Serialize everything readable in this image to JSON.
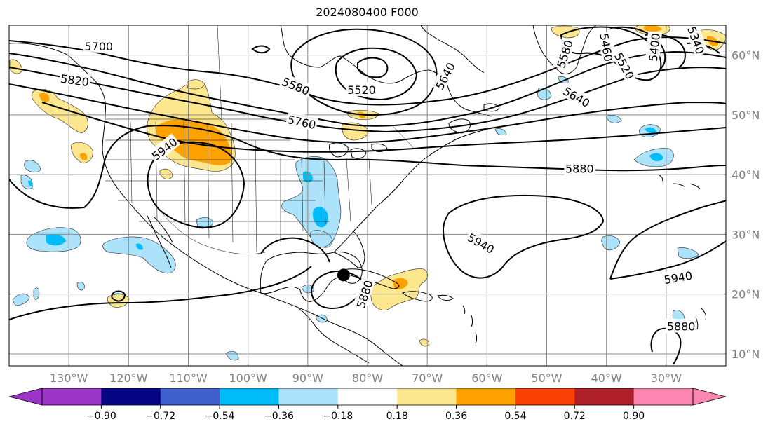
{
  "title": "2024080400 F000",
  "map": {
    "lon_min": -140,
    "lon_max": -20,
    "lat_min": 8,
    "lat_max": 65
  },
  "lon_ticks": [
    {
      "lon": -130,
      "label": "130°W"
    },
    {
      "lon": -120,
      "label": "120°W"
    },
    {
      "lon": -110,
      "label": "110°W"
    },
    {
      "lon": -100,
      "label": "100°W"
    },
    {
      "lon": -90,
      "label": "90°W"
    },
    {
      "lon": -80,
      "label": "80°W"
    },
    {
      "lon": -70,
      "label": "70°W"
    },
    {
      "lon": -60,
      "label": "60°W"
    },
    {
      "lon": -50,
      "label": "50°W"
    },
    {
      "lon": -40,
      "label": "40°W"
    },
    {
      "lon": -30,
      "label": "30°W"
    }
  ],
  "lat_ticks": [
    {
      "lat": 10,
      "label": "10°N"
    },
    {
      "lat": 20,
      "label": "20°N"
    },
    {
      "lat": 30,
      "label": "30°N"
    },
    {
      "lat": 40,
      "label": "40°N"
    },
    {
      "lat": 50,
      "label": "50°N"
    },
    {
      "lat": 60,
      "label": "60°N"
    }
  ],
  "contour_labels": [
    {
      "text": "5700",
      "lon": -125,
      "lat": 61.5,
      "rot": 0
    },
    {
      "text": "5820",
      "lon": -129,
      "lat": 55.8,
      "rot": 8
    },
    {
      "text": "5940",
      "lon": -114,
      "lat": 44.3,
      "rot": -38
    },
    {
      "text": "5580",
      "lon": -92,
      "lat": 54.8,
      "rot": 22
    },
    {
      "text": "5520",
      "lon": -81,
      "lat": 54.2,
      "rot": 0
    },
    {
      "text": "5640",
      "lon": -67,
      "lat": 56.5,
      "rot": -62
    },
    {
      "text": "5760",
      "lon": -91,
      "lat": 48.8,
      "rot": 12
    },
    {
      "text": "5580",
      "lon": -47,
      "lat": 60.2,
      "rot": -72
    },
    {
      "text": "5460",
      "lon": -40,
      "lat": 61.3,
      "rot": 80
    },
    {
      "text": "5520",
      "lon": -37,
      "lat": 58.2,
      "rot": 62
    },
    {
      "text": "5400",
      "lon": -32,
      "lat": 61.3,
      "rot": -84
    },
    {
      "text": "5340",
      "lon": -25,
      "lat": 62.5,
      "rot": 70
    },
    {
      "text": "5640",
      "lon": -45,
      "lat": 53,
      "rot": 30
    },
    {
      "text": "5880",
      "lon": -44.5,
      "lat": 41,
      "rot": 0
    },
    {
      "text": "5940",
      "lon": -61,
      "lat": 28.5,
      "rot": 30
    },
    {
      "text": "5940",
      "lon": -28,
      "lat": 22.8,
      "rot": -10
    },
    {
      "text": "5880",
      "lon": -27.5,
      "lat": 14.6,
      "rot": 0
    },
    {
      "text": "5880",
      "lon": -80.5,
      "lat": 20,
      "rot": -72
    }
  ],
  "marker": {
    "lon": -84,
    "lat": 23.2,
    "label": "storm-marker"
  },
  "colorbar": {
    "colors": [
      "#9a35c8",
      "#060684",
      "#3f5fcc",
      "#00bdf9",
      "#ade2fb",
      "#ffffff",
      "#fde78e",
      "#fda201",
      "#fb4005",
      "#b0202a",
      "#fb86b0"
    ],
    "extend_min_color": "#9a35c8",
    "extend_max_color": "#fb86b0",
    "tick_labels": [
      "−0.90",
      "−0.72",
      "−0.54",
      "−0.36",
      "−0.18",
      "0.18",
      "0.36",
      "0.54",
      "0.72",
      "0.90"
    ]
  }
}
